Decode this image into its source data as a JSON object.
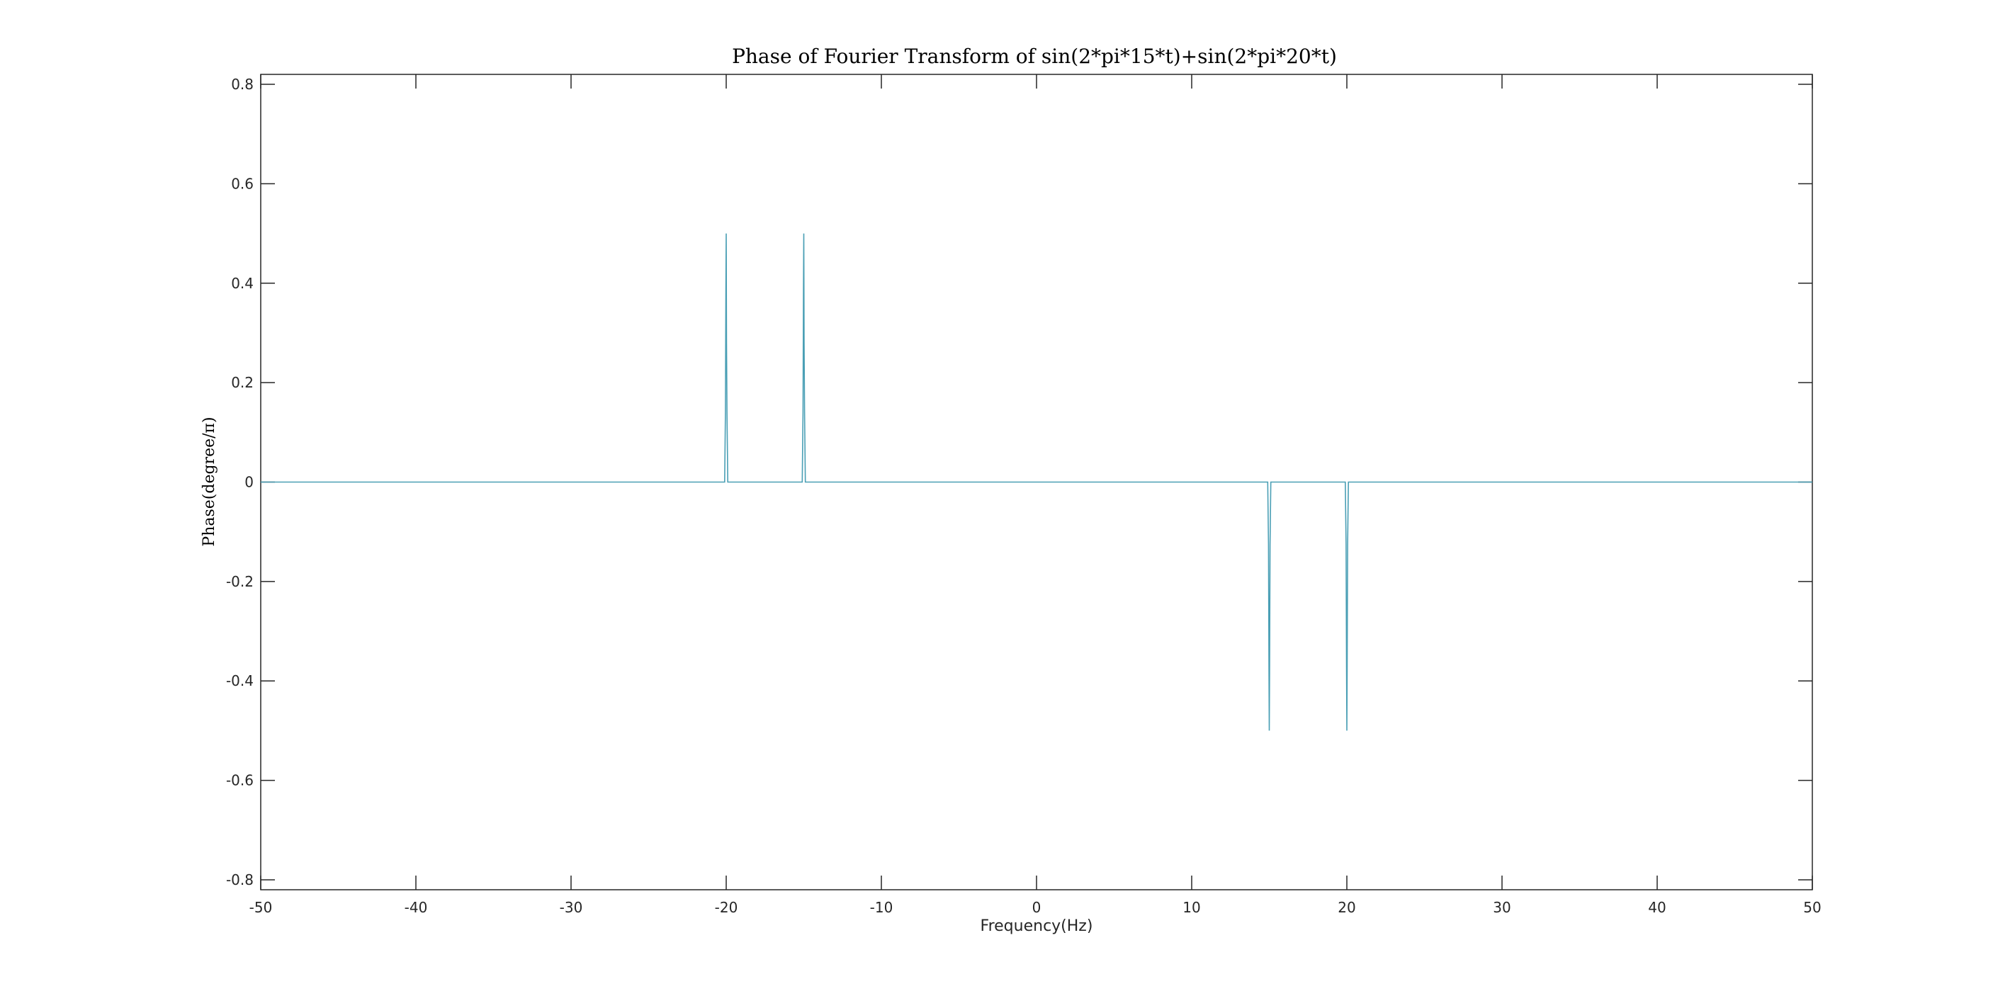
{
  "chart_data": {
    "type": "line",
    "title": "Phase of Fourier Transform of sin(2*pi*15*t)+sin(2*pi*20*t)",
    "xlabel": "Frequency(Hz)",
    "ylabel": "Phase(degree/π)",
    "xlim": [
      -50,
      50
    ],
    "ylim": [
      -0.82,
      0.82
    ],
    "xticks": [
      -50,
      -40,
      -30,
      -20,
      -10,
      0,
      10,
      20,
      30,
      40,
      50
    ],
    "xtick_labels": [
      "-50",
      "-40",
      "-30",
      "-20",
      "-10",
      "0",
      "10",
      "20",
      "30",
      "40",
      "50"
    ],
    "yticks": [
      0.8,
      0.6,
      0.4,
      0.2,
      0,
      -0.2,
      -0.4,
      -0.6,
      -0.8
    ],
    "ytick_labels": [
      "0.8",
      "0.6",
      "0.4",
      "0.2",
      "0",
      "-0.2",
      "-0.4",
      "-0.6",
      "-0.8"
    ],
    "grid": false,
    "line_color": "#4a9fb5",
    "series": [
      {
        "x": [
          -50,
          -20.1,
          -20.05,
          -20.02,
          -20,
          -19.98,
          -19.95,
          -19.9,
          -15.1,
          -15.05,
          -15.02,
          -15,
          -14.98,
          -14.95,
          -14.9,
          14.9,
          14.95,
          14.98,
          15,
          15.02,
          15.05,
          15.1,
          19.9,
          19.95,
          19.98,
          20,
          20.02,
          20.05,
          20.1,
          50
        ],
        "y": [
          0,
          0,
          0.14,
          0.39,
          0.5,
          0.28,
          0.14,
          0,
          0,
          0.14,
          0.39,
          0.5,
          0.28,
          0.14,
          0,
          0,
          -0.125,
          -0.375,
          -0.5,
          -0.375,
          -0.125,
          0,
          0,
          -0.125,
          -0.375,
          -0.5,
          -0.375,
          -0.125,
          0,
          0
        ]
      }
    ]
  }
}
